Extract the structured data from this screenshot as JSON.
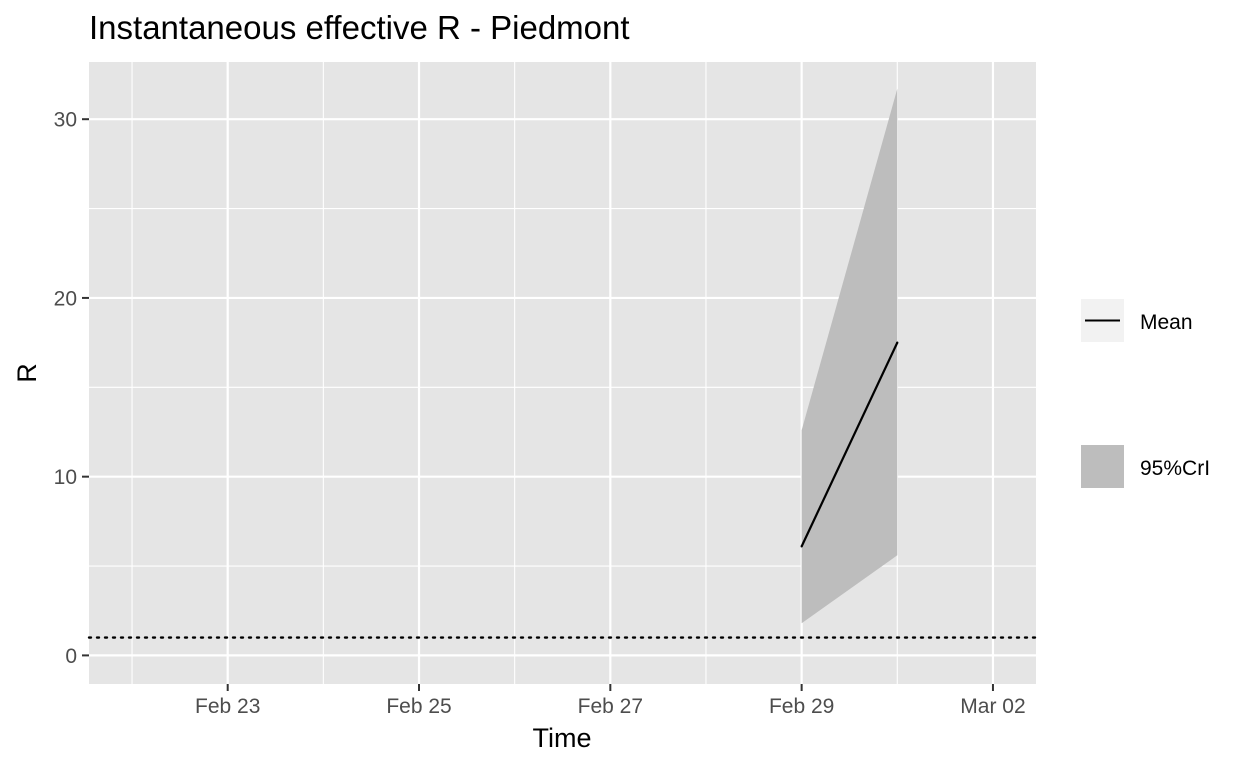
{
  "chart_data": {
    "type": "line",
    "title": "Instantaneous effective R -  Piedmont",
    "xlabel": "Time",
    "ylabel": "R",
    "x_tick_labels": [
      "Feb 23",
      "Feb 25",
      "Feb 27",
      "Feb 29",
      "Mar 02"
    ],
    "x_tick_days": [
      23,
      25,
      27,
      29,
      31
    ],
    "xlim_days": [
      21.55,
      31.45
    ],
    "y_ticks": [
      0,
      10,
      20,
      30
    ],
    "y_tick_labels": [
      "0",
      "10",
      "20",
      "30"
    ],
    "ylim": [
      -1.6,
      33.2
    ],
    "reference_line": {
      "y": 1,
      "style": "dotted"
    },
    "series": [
      {
        "name": "Mean",
        "x_days": [
          29,
          30
        ],
        "values": [
          6.1,
          17.5
        ]
      },
      {
        "name": "95%CrI",
        "x_days": [
          29,
          30
        ],
        "lower": [
          1.8,
          5.6
        ],
        "upper": [
          12.6,
          31.7
        ]
      }
    ],
    "legend": [
      {
        "label": "Mean",
        "symbol": "line"
      },
      {
        "label": "95%CrI",
        "symbol": "band"
      }
    ],
    "legend_position": "right",
    "grid": true,
    "colors": {
      "panel": "#e5e5e5",
      "grid": "#ffffff",
      "mean_line": "#000000",
      "band": "#bdbdbd",
      "legend_key_bg": "#f2f2f2"
    }
  }
}
